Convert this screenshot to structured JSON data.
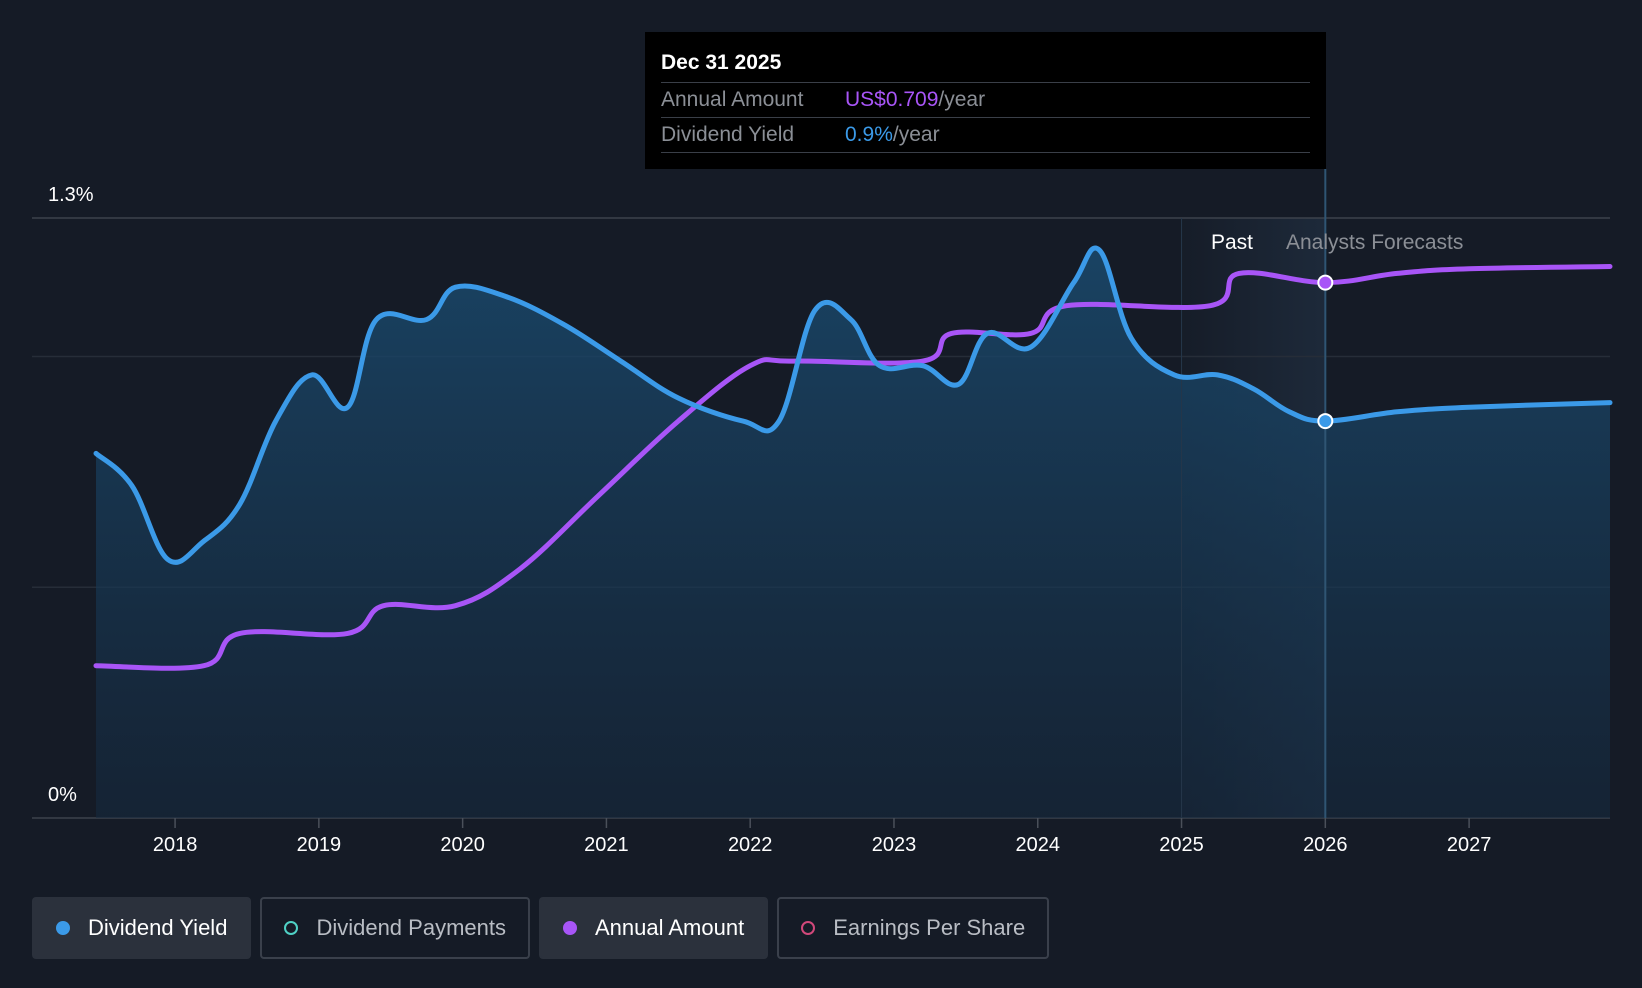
{
  "tooltip": {
    "date": "Dec 31 2025",
    "rows": [
      {
        "label": "Annual Amount",
        "value": "US$0.709",
        "unit": "/year"
      },
      {
        "label": "Dividend Yield",
        "value": "0.9%",
        "unit": "/year"
      }
    ]
  },
  "regions": {
    "past": "Past",
    "forecast": "Analysts Forecasts"
  },
  "legend": [
    {
      "label": "Dividend Yield",
      "active": true,
      "color": "#3b9ae8",
      "filled": true
    },
    {
      "label": "Dividend Payments",
      "active": false,
      "color": "#4fd1c5",
      "filled": false
    },
    {
      "label": "Annual Amount",
      "active": true,
      "color": "#a855f7",
      "filled": true
    },
    {
      "label": "Earnings Per Share",
      "active": false,
      "color": "#d1487a",
      "filled": false
    }
  ],
  "colors": {
    "yield": "#3b9ae8",
    "amount": "#a855f7",
    "background": "#151b26"
  },
  "chart_data": {
    "type": "line",
    "ylabel_ticks": [
      "1.3%",
      "0%"
    ],
    "ylim": [
      0,
      1.3
    ],
    "xlim": [
      2017.45,
      2027.98
    ],
    "x_ticks": [
      2018,
      2019,
      2020,
      2021,
      2022,
      2023,
      2024,
      2025,
      2026,
      2027
    ],
    "forecast_start": 2025.0,
    "today": 2026.0,
    "series": [
      {
        "name": "Dividend Yield",
        "points": [
          [
            2017.45,
            0.79
          ],
          [
            2017.7,
            0.72
          ],
          [
            2017.95,
            0.56
          ],
          [
            2018.2,
            0.6
          ],
          [
            2018.45,
            0.68
          ],
          [
            2018.7,
            0.86
          ],
          [
            2018.95,
            0.96
          ],
          [
            2019.2,
            0.89
          ],
          [
            2019.4,
            1.08
          ],
          [
            2019.75,
            1.08
          ],
          [
            2019.95,
            1.15
          ],
          [
            2020.3,
            1.13
          ],
          [
            2020.7,
            1.07
          ],
          [
            2021.1,
            0.99
          ],
          [
            2021.5,
            0.91
          ],
          [
            2021.95,
            0.86
          ],
          [
            2022.2,
            0.86
          ],
          [
            2022.45,
            1.1
          ],
          [
            2022.7,
            1.08
          ],
          [
            2022.9,
            0.98
          ],
          [
            2023.2,
            0.98
          ],
          [
            2023.45,
            0.94
          ],
          [
            2023.65,
            1.05
          ],
          [
            2023.95,
            1.02
          ],
          [
            2024.25,
            1.16
          ],
          [
            2024.43,
            1.23
          ],
          [
            2024.65,
            1.04
          ],
          [
            2024.95,
            0.96
          ],
          [
            2025.25,
            0.96
          ],
          [
            2025.5,
            0.93
          ],
          [
            2025.75,
            0.88
          ],
          [
            2026.0,
            0.86
          ],
          [
            2026.5,
            0.88
          ],
          [
            2027.0,
            0.89
          ],
          [
            2027.98,
            0.9
          ]
        ]
      },
      {
        "name": "Annual Amount",
        "points": [
          [
            2017.45,
            0.33
          ],
          [
            2018.2,
            0.33
          ],
          [
            2018.45,
            0.4
          ],
          [
            2019.2,
            0.4
          ],
          [
            2019.45,
            0.46
          ],
          [
            2019.95,
            0.46
          ],
          [
            2020.4,
            0.54
          ],
          [
            2020.95,
            0.7
          ],
          [
            2021.5,
            0.86
          ],
          [
            2022.0,
            0.98
          ],
          [
            2022.3,
            0.99
          ],
          [
            2023.2,
            0.99
          ],
          [
            2023.4,
            1.05
          ],
          [
            2023.95,
            1.05
          ],
          [
            2024.2,
            1.11
          ],
          [
            2025.2,
            1.11
          ],
          [
            2025.4,
            1.18
          ],
          [
            2026.0,
            1.16
          ],
          [
            2026.5,
            1.18
          ],
          [
            2027.0,
            1.19
          ],
          [
            2027.98,
            1.195
          ]
        ]
      }
    ]
  }
}
